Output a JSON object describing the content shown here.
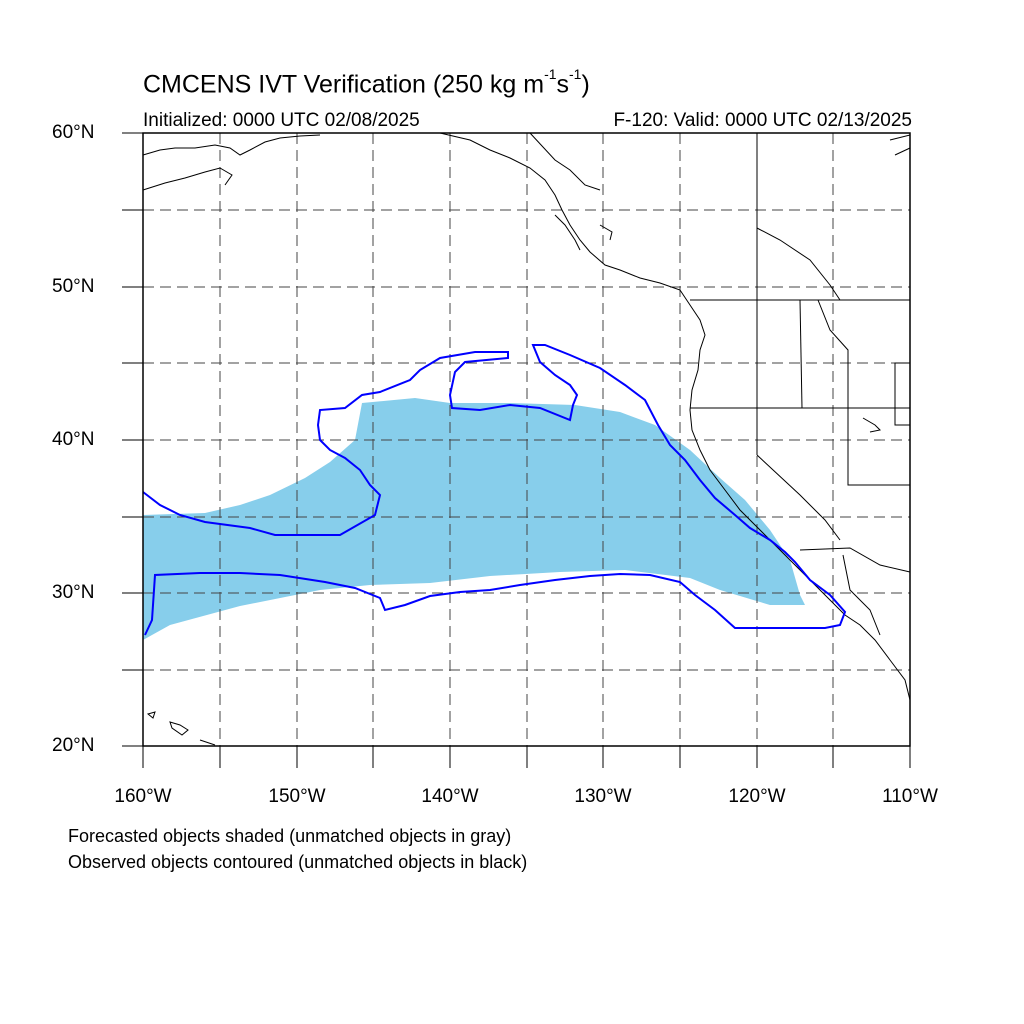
{
  "title": {
    "main": "CMCENS IVT Verification (250 kg m",
    "sup1": "-1",
    "mid": "s",
    "sup2": "-1",
    "end": ")"
  },
  "subtitle_left": "Initialized: 0000 UTC 02/08/2025",
  "subtitle_right": "F-120: Valid: 0000 UTC 02/13/2025",
  "lat_labels": [
    "60°N",
    "50°N",
    "40°N",
    "30°N",
    "20°N"
  ],
  "lon_labels": [
    "160°W",
    "150°W",
    "140°W",
    "130°W",
    "120°W",
    "110°W"
  ],
  "notes": [
    "Forecasted objects shaded (unmatched objects in gray)",
    "Observed objects contoured (unmatched objects in black)"
  ],
  "colors": {
    "forecast_fill": "#87ceeb",
    "observed_contour": "#0000ff",
    "coastline": "#000000",
    "grid": "#555555"
  }
}
